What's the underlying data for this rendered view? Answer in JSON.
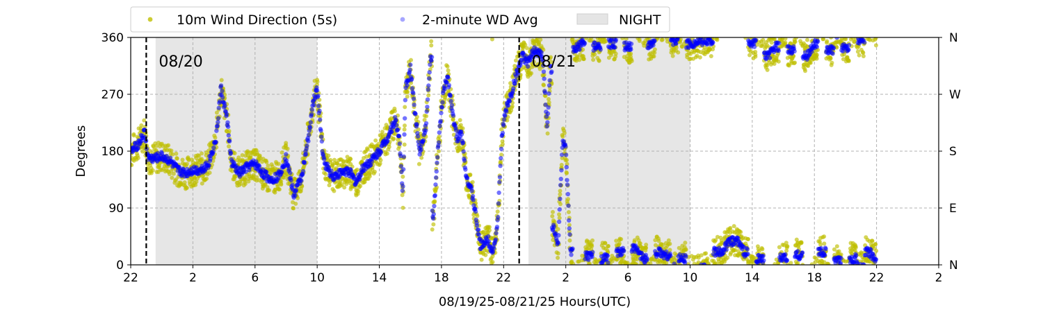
{
  "chart_data": {
    "type": "scatter",
    "title": "",
    "xlabel": "08/19/25-08/21/25  Hours(UTC)",
    "ylabel": "Degrees",
    "x_unit": "hours since 08/19/25 22:00 UTC",
    "xlim": [
      0,
      52
    ],
    "ylim": [
      0,
      360
    ],
    "x_ticks": [
      {
        "x": 0,
        "label": "22"
      },
      {
        "x": 4,
        "label": "2"
      },
      {
        "x": 8,
        "label": "6"
      },
      {
        "x": 12,
        "label": "10"
      },
      {
        "x": 16,
        "label": "14"
      },
      {
        "x": 20,
        "label": "18"
      },
      {
        "x": 24,
        "label": "22"
      },
      {
        "x": 28,
        "label": "2"
      },
      {
        "x": 32,
        "label": "6"
      },
      {
        "x": 36,
        "label": "10"
      },
      {
        "x": 40,
        "label": "14"
      },
      {
        "x": 44,
        "label": "18"
      },
      {
        "x": 48,
        "label": "22"
      },
      {
        "x": 52,
        "label": "2"
      }
    ],
    "y_ticks": [
      0,
      90,
      180,
      270,
      360
    ],
    "y_right_ticks": [
      {
        "y": 0,
        "label": "N"
      },
      {
        "y": 90,
        "label": "E"
      },
      {
        "y": 180,
        "label": "S"
      },
      {
        "y": 270,
        "label": "W"
      },
      {
        "y": 360,
        "label": "N"
      }
    ],
    "grid": true,
    "legend_position": "top-left above plot",
    "legend": [
      {
        "label": "10m Wind Direction (5s)",
        "color": "#bfbf00",
        "marker": "circle"
      },
      {
        "label": "2-minute WD Avg",
        "color": "#0000ff",
        "marker": "circle-translucent"
      },
      {
        "label": "NIGHT",
        "color": "#e5e5e5",
        "marker": "patch"
      }
    ],
    "night_periods": [
      [
        1.6,
        12.0
      ],
      [
        25.6,
        36.0
      ]
    ],
    "day_markers": [
      {
        "x": 1.0,
        "label": "08/20"
      },
      {
        "x": 25.0,
        "label": "08/21"
      }
    ],
    "series": [
      {
        "name": "2-minute WD Avg",
        "color": "#0000ff",
        "points": [
          [
            0,
            178
          ],
          [
            0.5,
            192
          ],
          [
            0.9,
            210
          ],
          [
            1.1,
            170
          ],
          [
            1.5,
            168
          ],
          [
            2,
            172
          ],
          [
            2.5,
            165
          ],
          [
            3,
            150
          ],
          [
            3.5,
            145
          ],
          [
            4,
            150
          ],
          [
            4.5,
            150
          ],
          [
            5,
            160
          ],
          [
            5.5,
            200
          ],
          [
            5.8,
            280
          ],
          [
            6.2,
            230
          ],
          [
            6.5,
            160
          ],
          [
            7,
            145
          ],
          [
            7.5,
            155
          ],
          [
            8,
            160
          ],
          [
            8.5,
            145
          ],
          [
            9,
            135
          ],
          [
            9.5,
            140
          ],
          [
            10,
            170
          ],
          [
            10.5,
            110
          ],
          [
            11,
            140
          ],
          [
            11.3,
            180
          ],
          [
            11.7,
            250
          ],
          [
            12,
            280
          ],
          [
            12.4,
            165
          ],
          [
            13,
            140
          ],
          [
            13.5,
            145
          ],
          [
            14,
            150
          ],
          [
            14.5,
            130
          ],
          [
            15,
            155
          ],
          [
            15.5,
            165
          ],
          [
            16,
            180
          ],
          [
            16.5,
            200
          ],
          [
            17,
            230
          ],
          [
            17.3,
            200
          ],
          [
            17.5,
            110
          ],
          [
            17.7,
            280
          ],
          [
            18,
            310
          ],
          [
            18.3,
            240
          ],
          [
            18.6,
            180
          ],
          [
            19,
            220
          ],
          [
            19.3,
            330
          ],
          [
            19.5,
            80
          ],
          [
            19.8,
            190
          ],
          [
            20.1,
            270
          ],
          [
            20.4,
            300
          ],
          [
            20.7,
            240
          ],
          [
            21,
            200
          ],
          [
            21.3,
            210
          ],
          [
            21.6,
            140
          ],
          [
            22,
            110
          ],
          [
            22.5,
            30
          ],
          [
            23,
            40
          ],
          [
            23.3,
            20
          ],
          [
            23.6,
            60
          ],
          [
            23.9,
            210
          ],
          [
            24.2,
            250
          ],
          [
            24.5,
            270
          ],
          [
            24.8,
            300
          ],
          [
            25.2,
            330
          ],
          [
            25.6,
            320
          ],
          [
            26,
            340
          ],
          [
            26.5,
            330
          ],
          [
            26.8,
            220
          ],
          [
            27,
            310
          ],
          [
            27.2,
            60
          ],
          [
            27.5,
            30
          ],
          [
            27.8,
            200
          ],
          [
            28,
            180
          ],
          [
            28.3,
            20
          ],
          [
            28.6,
            340
          ],
          [
            29,
            350
          ],
          [
            29.5,
            15
          ],
          [
            30,
            345
          ],
          [
            30.5,
            10
          ],
          [
            31,
            350
          ],
          [
            31.5,
            20
          ],
          [
            32,
            345
          ],
          [
            32.5,
            25
          ],
          [
            33,
            10
          ],
          [
            33.5,
            350
          ],
          [
            34,
            20
          ],
          [
            34.5,
            15
          ],
          [
            35,
            355
          ],
          [
            35.5,
            10
          ],
          [
            36,
            350
          ],
          [
            37,
            355
          ],
          [
            38,
            20
          ],
          [
            38.5,
            35
          ],
          [
            39,
            40
          ],
          [
            39.5,
            20
          ],
          [
            40,
            350
          ],
          [
            40.5,
            10
          ],
          [
            41,
            330
          ],
          [
            41.5,
            345
          ],
          [
            42,
            10
          ],
          [
            42.5,
            340
          ],
          [
            43,
            15
          ],
          [
            43.5,
            330
          ],
          [
            44,
            350
          ],
          [
            44.5,
            20
          ],
          [
            45,
            340
          ],
          [
            45.5,
            5
          ],
          [
            46,
            345
          ],
          [
            46.5,
            10
          ],
          [
            47,
            355
          ],
          [
            47.5,
            20
          ],
          [
            48,
            10
          ]
        ]
      },
      {
        "name": "10m Wind Direction (5s)",
        "color": "#bfbf00",
        "spread_degrees": 25
      }
    ]
  }
}
